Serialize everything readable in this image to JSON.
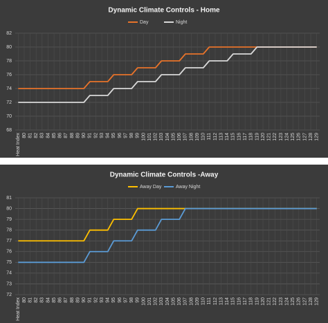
{
  "chart_data": [
    {
      "type": "line",
      "title": "Dynamic Climate Controls - Home",
      "legend": "top",
      "grid": true,
      "categories": [
        "Heat Index",
        "80",
        "81",
        "82",
        "83",
        "84",
        "85",
        "86",
        "87",
        "88",
        "89",
        "90",
        "91",
        "92",
        "93",
        "94",
        "95",
        "96",
        "97",
        "98",
        "99",
        "100",
        "101",
        "102",
        "103",
        "104",
        "105",
        "106",
        "107",
        "108",
        "109",
        "110",
        "111",
        "112",
        "113",
        "114",
        "115",
        "116",
        "117",
        "118",
        "119",
        "120",
        "121",
        "122",
        "123",
        "124",
        "125",
        "126",
        "127",
        "128",
        "129"
      ],
      "ylim": [
        68,
        82
      ],
      "yticks": [
        68,
        70,
        72,
        74,
        76,
        78,
        80,
        82
      ],
      "series": [
        {
          "name": "Day",
          "color": "#e8732a",
          "values": [
            74,
            74,
            74,
            74,
            74,
            74,
            74,
            74,
            74,
            74,
            74,
            74,
            75,
            75,
            75,
            75,
            76,
            76,
            76,
            76,
            77,
            77,
            77,
            77,
            78,
            78,
            78,
            78,
            79,
            79,
            79,
            79,
            80,
            80,
            80,
            80,
            80,
            80,
            80,
            80,
            80,
            80,
            80,
            80,
            80,
            80,
            80,
            80,
            80,
            80,
            80
          ]
        },
        {
          "name": "Night",
          "color": "#d9d9d9",
          "values": [
            72,
            72,
            72,
            72,
            72,
            72,
            72,
            72,
            72,
            72,
            72,
            72,
            73,
            73,
            73,
            73,
            74,
            74,
            74,
            74,
            75,
            75,
            75,
            75,
            76,
            76,
            76,
            76,
            77,
            77,
            77,
            77,
            78,
            78,
            78,
            78,
            79,
            79,
            79,
            79,
            80,
            80,
            80,
            80,
            80,
            80,
            80,
            80,
            80,
            80,
            80
          ]
        }
      ]
    },
    {
      "type": "line",
      "title": "Dynamic Climate Controls -Away",
      "legend": "top",
      "grid": true,
      "categories": [
        "Heat Index",
        "80",
        "81",
        "82",
        "83",
        "84",
        "85",
        "86",
        "87",
        "88",
        "89",
        "90",
        "91",
        "92",
        "93",
        "94",
        "95",
        "96",
        "97",
        "98",
        "99",
        "100",
        "101",
        "102",
        "103",
        "104",
        "105",
        "106",
        "107",
        "108",
        "109",
        "110",
        "111",
        "112",
        "113",
        "114",
        "115",
        "116",
        "117",
        "118",
        "119",
        "120",
        "121",
        "122",
        "123",
        "124",
        "125",
        "126",
        "127",
        "128",
        "129"
      ],
      "ylim": [
        72,
        81
      ],
      "yticks": [
        72,
        73,
        74,
        75,
        76,
        77,
        78,
        79,
        80,
        81
      ],
      "series": [
        {
          "name": "Away Day",
          "color": "#ffc000",
          "values": [
            77,
            77,
            77,
            77,
            77,
            77,
            77,
            77,
            77,
            77,
            77,
            77,
            78,
            78,
            78,
            78,
            79,
            79,
            79,
            79,
            80,
            80,
            80,
            80,
            80,
            80,
            80,
            80,
            80,
            80,
            80,
            80,
            80,
            80,
            80,
            80,
            80,
            80,
            80,
            80,
            80,
            80,
            80,
            80,
            80,
            80,
            80,
            80,
            80,
            80,
            80
          ]
        },
        {
          "name": "Away Night",
          "color": "#5b9bd5",
          "values": [
            75,
            75,
            75,
            75,
            75,
            75,
            75,
            75,
            75,
            75,
            75,
            75,
            76,
            76,
            76,
            76,
            77,
            77,
            77,
            77,
            78,
            78,
            78,
            78,
            79,
            79,
            79,
            79,
            80,
            80,
            80,
            80,
            80,
            80,
            80,
            80,
            80,
            80,
            80,
            80,
            80,
            80,
            80,
            80,
            80,
            80,
            80,
            80,
            80,
            80,
            80
          ]
        }
      ]
    }
  ]
}
